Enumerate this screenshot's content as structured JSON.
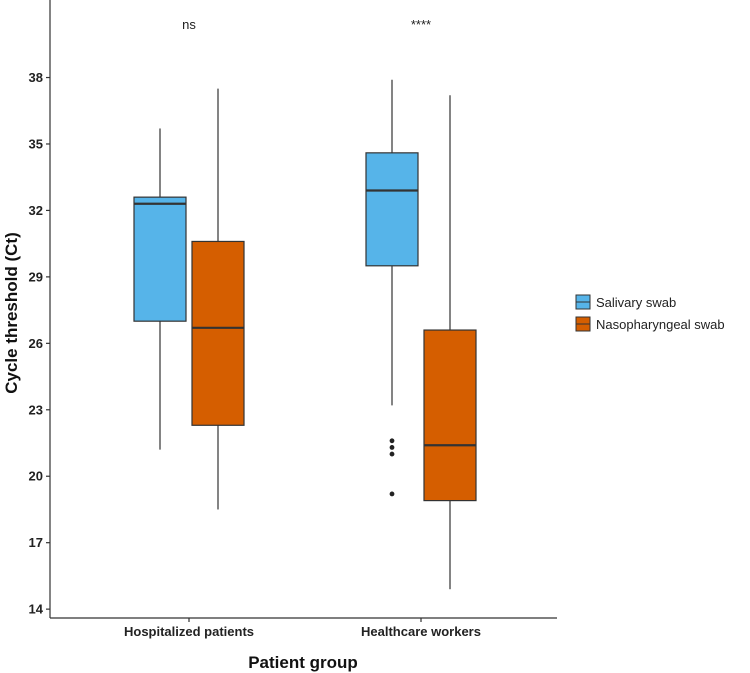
{
  "chart_data": {
    "type": "boxplot",
    "title": "",
    "xlabel": "Patient group",
    "ylabel": "Cycle threshold (Ct)",
    "ylim": [
      13.6,
      41.5
    ],
    "yticks": [
      14,
      17,
      20,
      23,
      26,
      29,
      32,
      35,
      38
    ],
    "categories": [
      "Hospitalized patients",
      "Healthcare workers"
    ],
    "significance": [
      "ns",
      "****"
    ],
    "series": [
      {
        "name": "Salivary swab",
        "color": "#56B4E9",
        "boxes": [
          {
            "min": 21.2,
            "q1": 27.0,
            "median": 32.3,
            "q3": 32.6,
            "max": 35.7,
            "outliers": []
          },
          {
            "min": 23.2,
            "q1": 29.5,
            "median": 32.9,
            "q3": 34.6,
            "max": 37.9,
            "outliers": [
              21.6,
              21.3,
              21.0,
              19.2
            ]
          }
        ]
      },
      {
        "name": "Nasopharyngeal swab",
        "color": "#D55E00",
        "boxes": [
          {
            "min": 18.5,
            "q1": 22.3,
            "median": 26.7,
            "q3": 30.6,
            "max": 37.5,
            "outliers": []
          },
          {
            "min": 14.9,
            "q1": 18.9,
            "median": 21.4,
            "q3": 26.6,
            "max": 37.2,
            "outliers": []
          }
        ]
      }
    ],
    "legend_position": "right",
    "grid": false
  }
}
